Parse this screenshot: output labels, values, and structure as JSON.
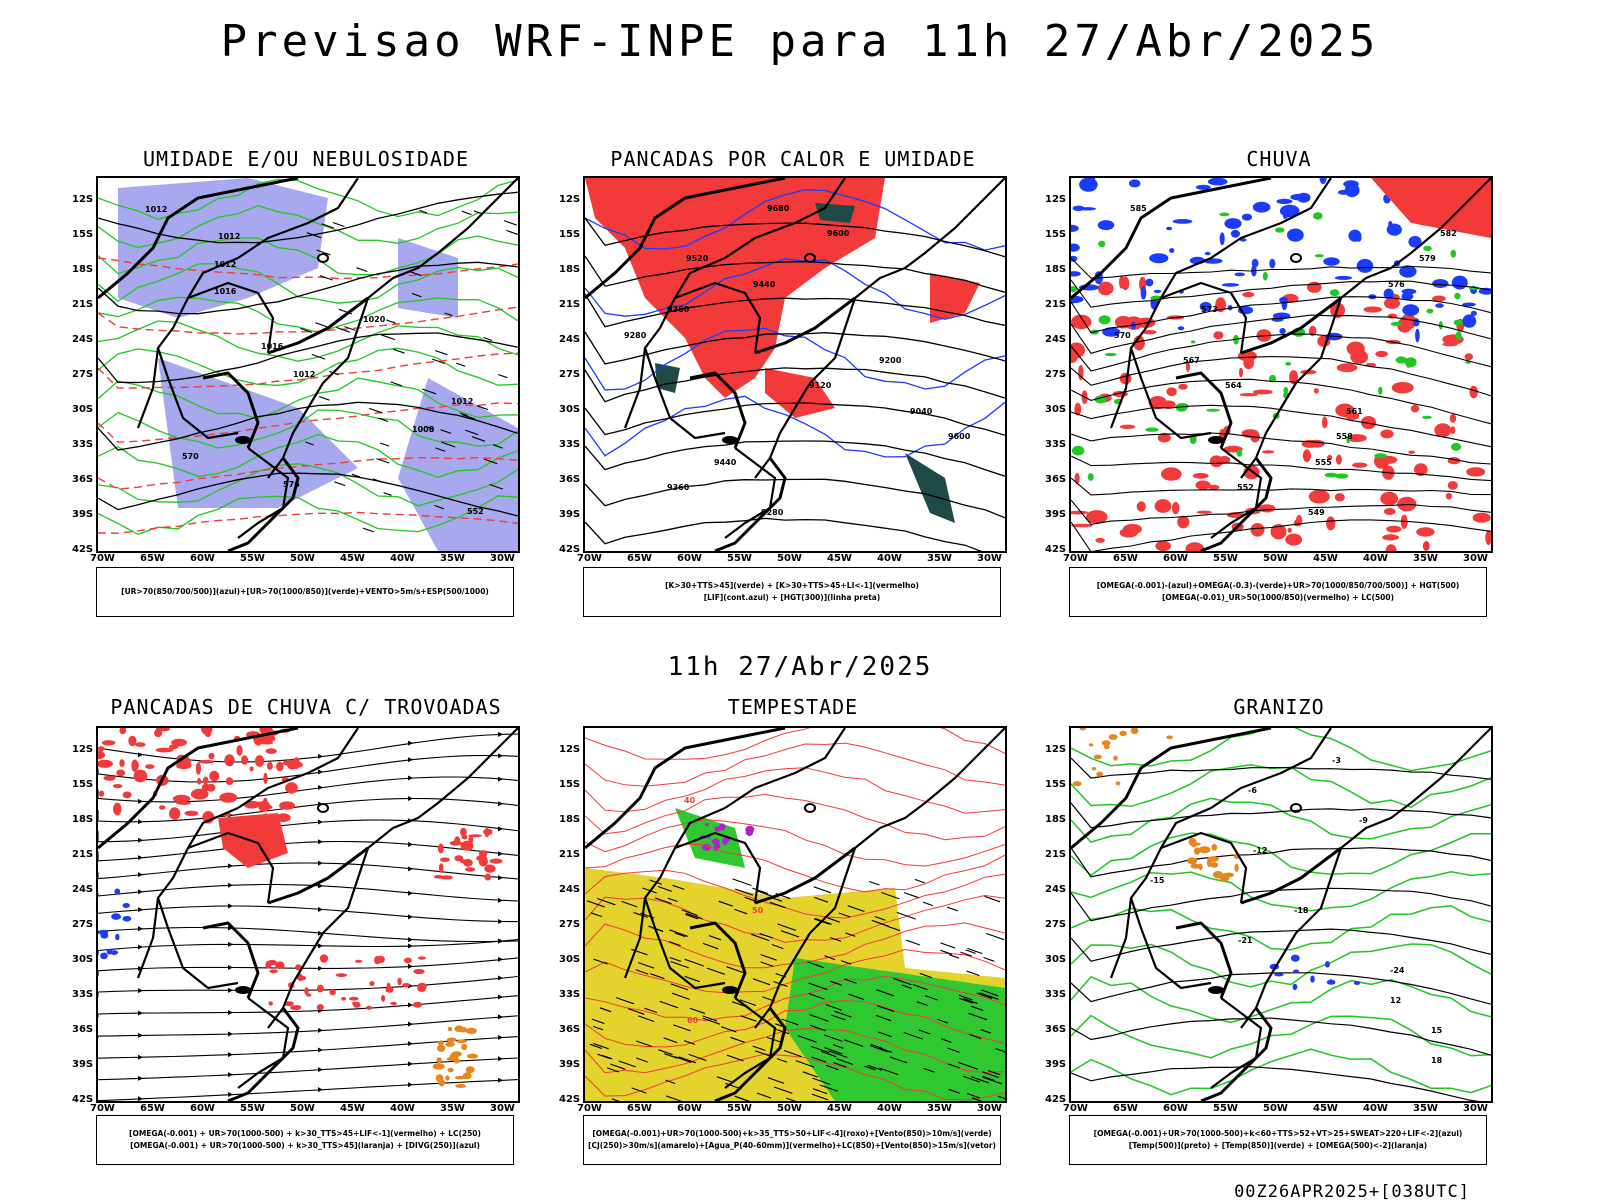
{
  "title": "Previsao WRF-INPE  para 11h 27/Abr/2025",
  "subtitle": "11h 27/Abr/2025",
  "footer": "00Z26APR2025+[038UTC]",
  "axes": {
    "lat": [
      "12S",
      "15S",
      "18S",
      "21S",
      "24S",
      "27S",
      "30S",
      "33S",
      "36S",
      "39S",
      "42S"
    ],
    "lon": [
      "70W",
      "65W",
      "60W",
      "55W",
      "50W",
      "45W",
      "40W",
      "35W",
      "30W"
    ]
  },
  "panels": [
    {
      "id": "umidade",
      "title": "UMIDADE E/OU NEBULOSIDADE",
      "legend": [
        "[UR>70(850/700/500)](azul)+[UR>70(1000/850)](verde)+VENTO>5m/s+ESP(500/1000)"
      ],
      "labels": [
        "1012",
        "1012",
        "1012",
        "1016",
        "1020",
        "1016",
        "1012",
        "1012",
        "1008",
        "570",
        "576",
        "552"
      ]
    },
    {
      "id": "pancadas",
      "title": "PANCADAS POR CALOR E UMIDADE",
      "legend": [
        "[K>30+TTS>45](verde) + [K>30+TTS>45+LI<-1](vermelho)",
        "[LIF](cont.azul) + [HGT(300)](linha preta)"
      ],
      "labels": [
        "9680",
        "9600",
        "9520",
        "9440",
        "9360",
        "9280",
        "9200",
        "9120",
        "9040",
        "9600",
        "9440",
        "9360",
        "9280"
      ]
    },
    {
      "id": "chuva",
      "title": "CHUVA",
      "legend": [
        "[OMEGA(-0.001)-(azul)+OMEGA(-0.3)-(verde)+UR>70(1000/850/700/500)] + HGT(500)",
        "[OMEGA(-0.01)_UR>50(1000/850)(vermelho) + LC(500)"
      ],
      "labels": [
        "585",
        "582",
        "579",
        "576",
        "573",
        "570",
        "567",
        "564",
        "561",
        "558",
        "555",
        "552",
        "549"
      ]
    },
    {
      "id": "trovoadas",
      "title": "PANCADAS DE CHUVA C/ TROVOADAS",
      "legend": [
        "[OMEGA(-0.001) + UR>70(1000-500) + k>30_TTS>45+LIF<-1](vermelho) + LC(250)",
        "[OMEGA(-0.001) + UR>70(1000-500) + k>30_TTS>45](laranja) + [DIVG(250)](azul)"
      ],
      "labels": []
    },
    {
      "id": "tempestade",
      "title": "TEMPESTADE",
      "legend": [
        "[OMEGA(-0.001)+UR>70(1000-500)+k>35_TTS>50+LIF<-4](roxo)+[Vento(850)>10m/s](verde)",
        "[CJ(250)>30m/s](amarelo)+[Agua_P(40-60mm)](vermelho)+LC(850)+[Vento(850)>15m/s](vetor)"
      ],
      "labels": [
        "40",
        "50",
        "60"
      ]
    },
    {
      "id": "granizo",
      "title": "GRANIZO",
      "legend": [
        "[OMEGA(-0.001)+UR>70(1000-500)+k<60+TTS>52+VT>25+SWEAT>220+LIF<-2](azul)",
        "[Temp(500)](preto) + [Temp(850)](verde) + [OMEGA(500)<-2](laranja)"
      ],
      "labels": [
        "-3",
        "-6",
        "-9",
        "-12",
        "-15",
        "-18",
        "-21",
        "-24",
        "12",
        "15",
        "18"
      ]
    }
  ],
  "colors": {
    "black": "#000000",
    "red": "#f23a3a",
    "green": "#1fc81f",
    "blue": "#1a3cff",
    "lavender": "#a8a8ee",
    "yellow": "#e3d32c",
    "darkteal": "#1e4b46",
    "orange": "#e8861e",
    "purple": "#b020d0"
  }
}
